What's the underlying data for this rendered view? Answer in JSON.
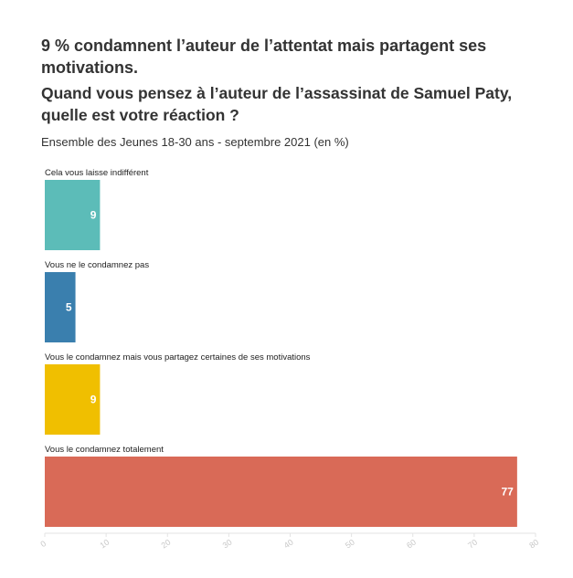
{
  "header": {
    "title": "9 % condamnent l’auteur de l’attentat mais partagent ses motivations.",
    "subtitle": "Quand vous pensez à l’auteur de l’assassinat de Samuel Paty, quelle est votre réaction ?",
    "description": "Ensemble des Jeunes 18-30 ans - septembre 2021 (en %)"
  },
  "chart_data": {
    "type": "bar",
    "orientation": "horizontal",
    "categories": [
      "Cela vous laisse indifférent",
      "Vous ne le condamnez pas",
      "Vous le condamnez mais vous partagez certaines de ses motivations",
      "Vous le condamnez totalement"
    ],
    "values": [
      9,
      5,
      9,
      77
    ],
    "colors": [
      "#5cbcb8",
      "#3a7fae",
      "#f0bf00",
      "#d96a57"
    ],
    "xlim": [
      0,
      80
    ],
    "xticks": [
      0,
      10,
      20,
      30,
      40,
      50,
      60,
      70,
      80
    ],
    "data_labels": true,
    "grid": false
  }
}
